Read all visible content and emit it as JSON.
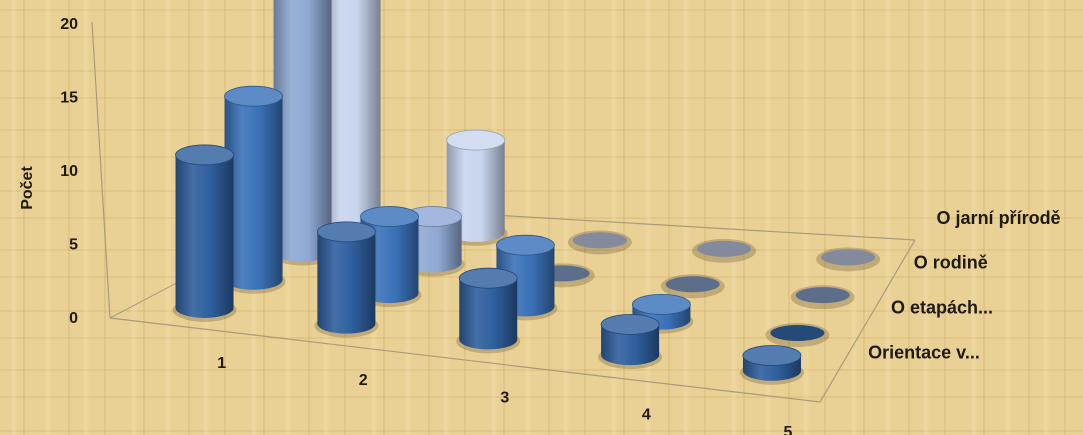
{
  "chart_data": {
    "type": "bar",
    "subtype": "3d-cylinder",
    "title": "",
    "ylabel": "Počet",
    "xlabel": "",
    "ylim": [
      0,
      20
    ],
    "yticks": [
      "0",
      "5",
      "10",
      "15",
      "20"
    ],
    "categories": [
      "1",
      "2",
      "3",
      "4",
      "5"
    ],
    "series": [
      {
        "name": "Orientace v...",
        "color": "#2f5f9e",
        "values": [
          10,
          6,
          4,
          2,
          1
        ]
      },
      {
        "name": "O etapách...",
        "color": "#3a72b8",
        "values": [
          12,
          5,
          4,
          1,
          0
        ]
      },
      {
        "name": "O rodině",
        "color": "#8fa9d4",
        "values": [
          22,
          3,
          0,
          0,
          0
        ]
      },
      {
        "name": "O jarní přírodě",
        "color": "#c8d5ee",
        "values": [
          17,
          6,
          0,
          0,
          0
        ]
      }
    ]
  }
}
